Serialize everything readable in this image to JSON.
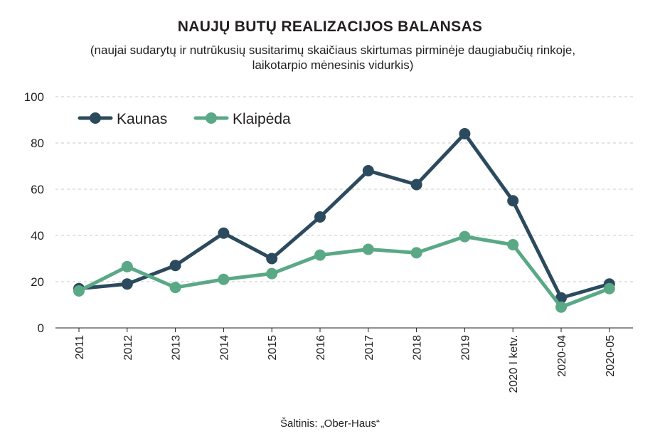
{
  "chart_data": {
    "type": "line",
    "title": "NAUJŲ BUTŲ REALIZACIJOS BALANSAS",
    "subtitle": "(naujai sudarytų ir nutrūkusių susitarimų skaičiaus skirtumas pirminėje daugiabučių rinkoje, laikotarpio mėnesinis vidurkis)",
    "categories": [
      "2011",
      "2012",
      "2013",
      "2014",
      "2015",
      "2016",
      "2017",
      "2018",
      "2019",
      "2020 I ketv.",
      "2020-04",
      "2020-05"
    ],
    "series": [
      {
        "name": "Kaunas",
        "color": "#2c4a5e",
        "values": [
          17,
          19,
          27,
          41,
          30,
          48,
          68,
          62,
          84,
          55,
          13,
          19
        ]
      },
      {
        "name": "Klaipėda",
        "color": "#5aa886",
        "values": [
          16,
          26.5,
          17.5,
          21,
          23.5,
          31.5,
          34,
          32.5,
          39.5,
          36,
          9,
          17
        ]
      }
    ],
    "y_ticks": [
      "0",
      "20",
      "40",
      "60",
      "80",
      "100"
    ],
    "ylim": [
      0,
      100
    ],
    "grid": true,
    "legend_position": "top-left",
    "source": "Šaltinis: „Ober-Haus“"
  }
}
